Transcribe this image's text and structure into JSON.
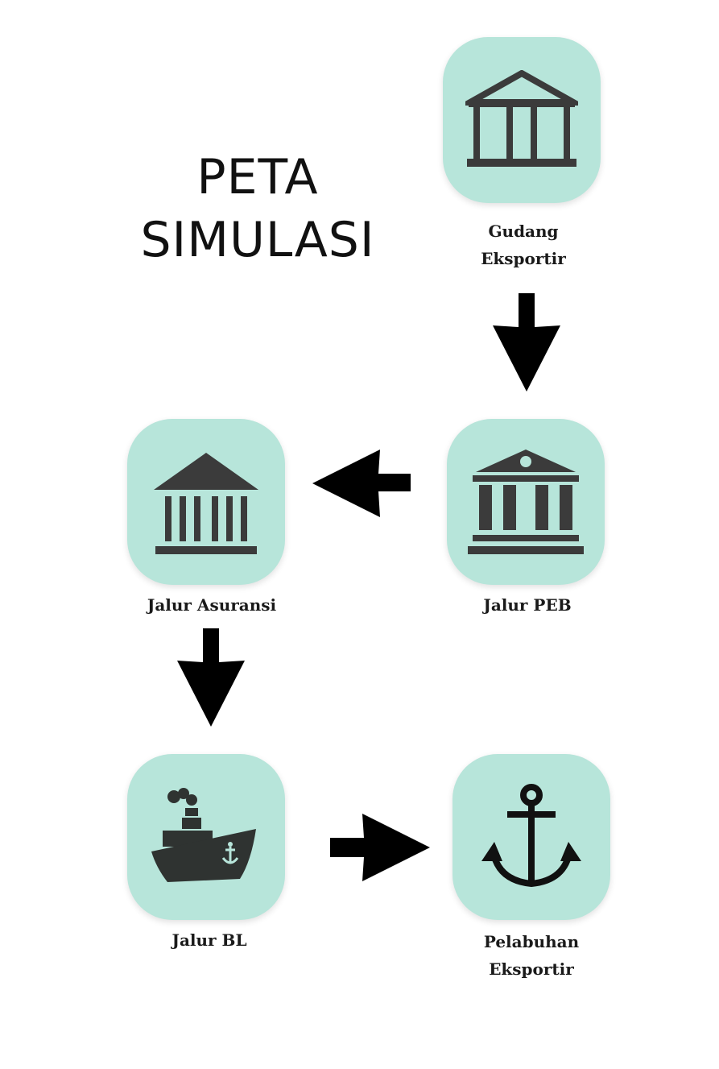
{
  "title": {
    "line1": "PETA",
    "line2": "SIMULASI"
  },
  "nodes": {
    "gudang": {
      "label_line1": "Gudang",
      "label_line2": "Eksportir",
      "icon": "building-columns-icon"
    },
    "peb": {
      "label": "Jalur PEB",
      "icon": "bank-icon"
    },
    "asuransi": {
      "label": "Jalur Asuransi",
      "icon": "institution-icon"
    },
    "bl": {
      "label": "Jalur BL",
      "icon": "ship-icon"
    },
    "pelabuhan": {
      "label_line1": "Pelabuhan",
      "label_line2": "Eksportir",
      "icon": "anchor-icon"
    }
  },
  "colors": {
    "node_fill": "#b7e5da",
    "icon": "#3b3b3b",
    "arrow": "#000000"
  }
}
